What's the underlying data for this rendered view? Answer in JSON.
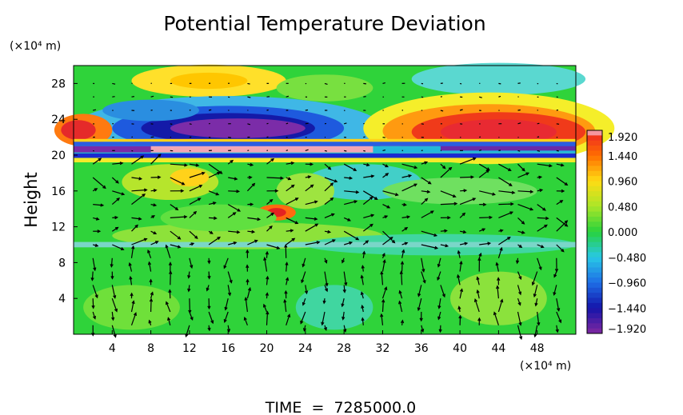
{
  "chart_data": {
    "type": "heatmap",
    "title": "Potential Temperature Deviation",
    "ylabel": "Height",
    "y_unit_label": "(×10⁴ m)",
    "x_unit_label": "(×10⁴ m)",
    "xlim": [
      0,
      52
    ],
    "ylim": [
      0,
      30
    ],
    "xticks": [
      "4",
      "8",
      "12",
      "16",
      "20",
      "24",
      "28",
      "32",
      "36",
      "40",
      "44",
      "48"
    ],
    "xtick_values": [
      4,
      8,
      12,
      16,
      20,
      24,
      28,
      32,
      36,
      40,
      44,
      48
    ],
    "yticks": [
      "4",
      "8",
      "12",
      "16",
      "20",
      "24",
      "28"
    ],
    "ytick_values": [
      4,
      8,
      12,
      16,
      20,
      24,
      28
    ],
    "colorbar": {
      "range": [
        -1.92,
        1.92
      ],
      "labels": [
        "1.920",
        "1.440",
        "0.960",
        "0.480",
        "0.000",
        "−0.480",
        "−0.960",
        "−1.440",
        "−1.920"
      ],
      "label_values": [
        1.92,
        1.44,
        0.96,
        0.48,
        0.0,
        -0.48,
        -0.96,
        -1.44,
        -1.92
      ]
    },
    "overlay": "wind vector arrows",
    "footer": "TIME  =  7285000.0"
  }
}
